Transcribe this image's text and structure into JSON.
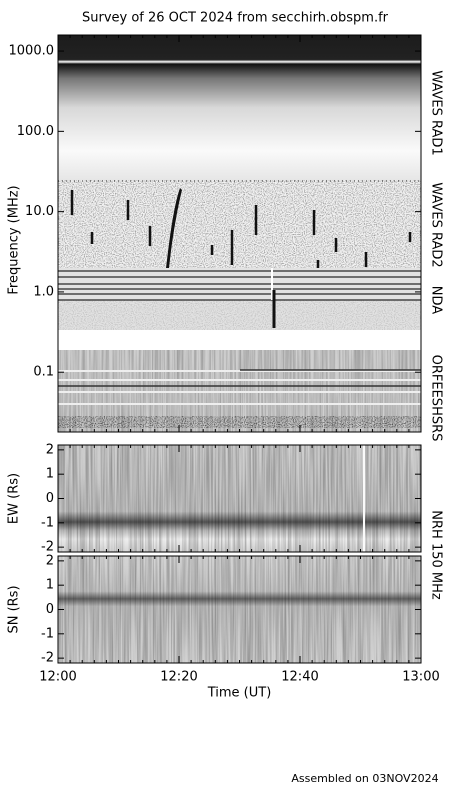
{
  "title": "Survey of 26 OCT 2024 from secchirh.obspm.fr",
  "footer": "Assembled on 03NOV2024",
  "side_label": "NRH 150 MHz",
  "chart_data": [
    {
      "type": "spectrogram",
      "ylabel": "Frequency (MHz)",
      "log_y": true,
      "ylim": [
        0.018,
        1585
      ],
      "yticks": [
        0.1,
        {
          "value": 1,
          "label": "1.0"
        },
        {
          "value": 10,
          "label": "10.0"
        },
        {
          "value": 100,
          "label": "100.0"
        },
        {
          "value": 1000,
          "label": "1000.0"
        }
      ],
      "instruments": [
        "WAVES RAD1",
        "WAVES RAD2",
        "NDA",
        "ORFEESHSRS"
      ]
    },
    {
      "type": "heatmap",
      "ylabel": "EW (Rs)",
      "ylim": [
        -2.2,
        2.2
      ],
      "yticks": [
        -2,
        -1,
        0,
        1,
        2
      ]
    },
    {
      "type": "heatmap",
      "ylabel": "SN (Rs)",
      "ylim": [
        -2.2,
        2.2
      ],
      "yticks": [
        -2,
        -1,
        0,
        1,
        2
      ],
      "xlabel": "Time (UT)",
      "xlim": [
        0,
        60
      ],
      "xticks": [
        {
          "value": 0,
          "label": "12:00"
        },
        {
          "value": 20,
          "label": "12:20"
        },
        {
          "value": 40,
          "label": "12:40"
        },
        {
          "value": 60,
          "label": "13:00"
        }
      ]
    }
  ]
}
